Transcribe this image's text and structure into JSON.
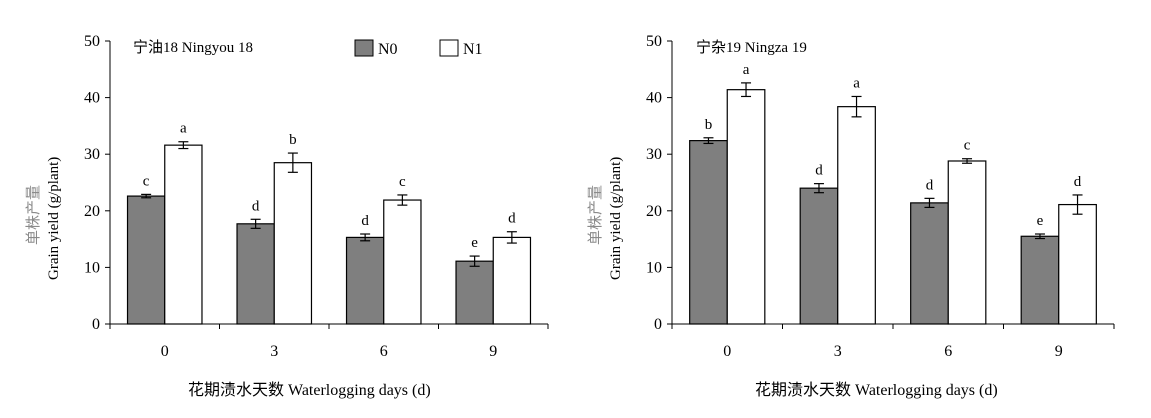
{
  "chart_data": [
    {
      "type": "bar",
      "title": "宁油18 Ningyou 18",
      "xlabel": "花期渍水天数 Waterlogging days (d)",
      "ylabel_zh": "单株产量",
      "ylabel": "Grain yield (g/plant)",
      "ylim": [
        0,
        50
      ],
      "yticks": [
        0,
        10,
        20,
        30,
        40,
        50
      ],
      "categories": [
        "0",
        "3",
        "6",
        "9"
      ],
      "legend": {
        "show": true,
        "position": "top-center"
      },
      "series": [
        {
          "name": "N0",
          "color": "#7f7f7f",
          "values": [
            22.6,
            17.7,
            15.3,
            11.1
          ],
          "errors": [
            0.3,
            0.8,
            0.6,
            0.9
          ],
          "sig": [
            "c",
            "d",
            "d",
            "e"
          ]
        },
        {
          "name": "N1",
          "color": "#ffffff",
          "values": [
            31.6,
            28.5,
            21.9,
            15.3
          ],
          "errors": [
            0.6,
            1.7,
            0.9,
            1.0
          ],
          "sig": [
            "a",
            "b",
            "c",
            "d"
          ]
        }
      ]
    },
    {
      "type": "bar",
      "title": "宁杂19 Ningza 19",
      "xlabel": "花期渍水天数 Waterlogging days (d)",
      "ylabel_zh": "单株产量",
      "ylabel": "Grain yield (g/plant)",
      "ylim": [
        0,
        50
      ],
      "yticks": [
        0,
        10,
        20,
        30,
        40,
        50
      ],
      "categories": [
        "0",
        "3",
        "6",
        "9"
      ],
      "legend": {
        "show": false
      },
      "series": [
        {
          "name": "N0",
          "color": "#7f7f7f",
          "values": [
            32.4,
            24.0,
            21.4,
            15.5
          ],
          "errors": [
            0.5,
            0.8,
            0.8,
            0.4
          ],
          "sig": [
            "b",
            "d",
            "d",
            "e"
          ]
        },
        {
          "name": "N1",
          "color": "#ffffff",
          "values": [
            41.4,
            38.4,
            28.8,
            21.1
          ],
          "errors": [
            1.2,
            1.8,
            0.4,
            1.7
          ],
          "sig": [
            "a",
            "a",
            "c",
            "d"
          ]
        }
      ]
    }
  ]
}
